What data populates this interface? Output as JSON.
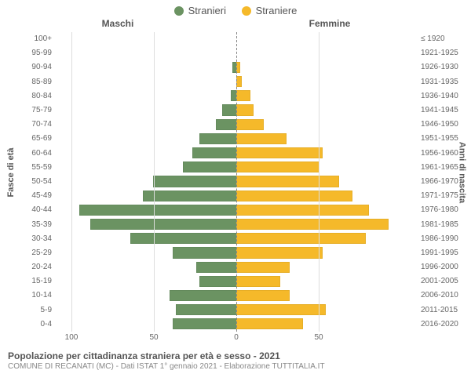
{
  "chart": {
    "type": "population-pyramid",
    "legend": [
      {
        "label": "Stranieri",
        "color": "#6b9362"
      },
      {
        "label": "Straniere",
        "color": "#f5b92a"
      }
    ],
    "header_left": "Maschi",
    "header_right": "Femmine",
    "y_left_title": "Fasce di età",
    "y_right_title": "Anni di nascita",
    "x_ticks_left": [
      100,
      50,
      0
    ],
    "x_ticks_right": [
      0,
      50
    ],
    "xlim": 110,
    "bar_gap": 4,
    "background_color": "#ffffff",
    "grid_color": "#dddddd",
    "center_line_color": "#888888",
    "male_color": "#6b9362",
    "female_color": "#f5b92a",
    "label_fontsize": 10,
    "axis_title_fontsize": 11,
    "rows": [
      {
        "age": "100+",
        "birth": "≤ 1920",
        "m": 0,
        "f": 0
      },
      {
        "age": "95-99",
        "birth": "1921-1925",
        "m": 0,
        "f": 0
      },
      {
        "age": "90-94",
        "birth": "1926-1930",
        "m": 2,
        "f": 2
      },
      {
        "age": "85-89",
        "birth": "1931-1935",
        "m": 0,
        "f": 3
      },
      {
        "age": "80-84",
        "birth": "1936-1940",
        "m": 3,
        "f": 8
      },
      {
        "age": "75-79",
        "birth": "1941-1945",
        "m": 8,
        "f": 10
      },
      {
        "age": "70-74",
        "birth": "1946-1950",
        "m": 12,
        "f": 16
      },
      {
        "age": "65-69",
        "birth": "1951-1955",
        "m": 22,
        "f": 30
      },
      {
        "age": "60-64",
        "birth": "1956-1960",
        "m": 26,
        "f": 52
      },
      {
        "age": "55-59",
        "birth": "1961-1965",
        "m": 32,
        "f": 50
      },
      {
        "age": "50-54",
        "birth": "1966-1970",
        "m": 50,
        "f": 62
      },
      {
        "age": "45-49",
        "birth": "1971-1975",
        "m": 56,
        "f": 70
      },
      {
        "age": "40-44",
        "birth": "1976-1980",
        "m": 95,
        "f": 80
      },
      {
        "age": "35-39",
        "birth": "1981-1985",
        "m": 88,
        "f": 92
      },
      {
        "age": "30-34",
        "birth": "1986-1990",
        "m": 64,
        "f": 78
      },
      {
        "age": "25-29",
        "birth": "1991-1995",
        "m": 38,
        "f": 52
      },
      {
        "age": "20-24",
        "birth": "1996-2000",
        "m": 24,
        "f": 32
      },
      {
        "age": "15-19",
        "birth": "2001-2005",
        "m": 22,
        "f": 26
      },
      {
        "age": "10-14",
        "birth": "2006-2010",
        "m": 40,
        "f": 32
      },
      {
        "age": "5-9",
        "birth": "2011-2015",
        "m": 36,
        "f": 54
      },
      {
        "age": "0-4",
        "birth": "2016-2020",
        "m": 38,
        "f": 40
      }
    ]
  },
  "footer": {
    "title": "Popolazione per cittadinanza straniera per età e sesso - 2021",
    "subtitle": "COMUNE DI RECANATI (MC) - Dati ISTAT 1° gennaio 2021 - Elaborazione TUTTITALIA.IT"
  }
}
